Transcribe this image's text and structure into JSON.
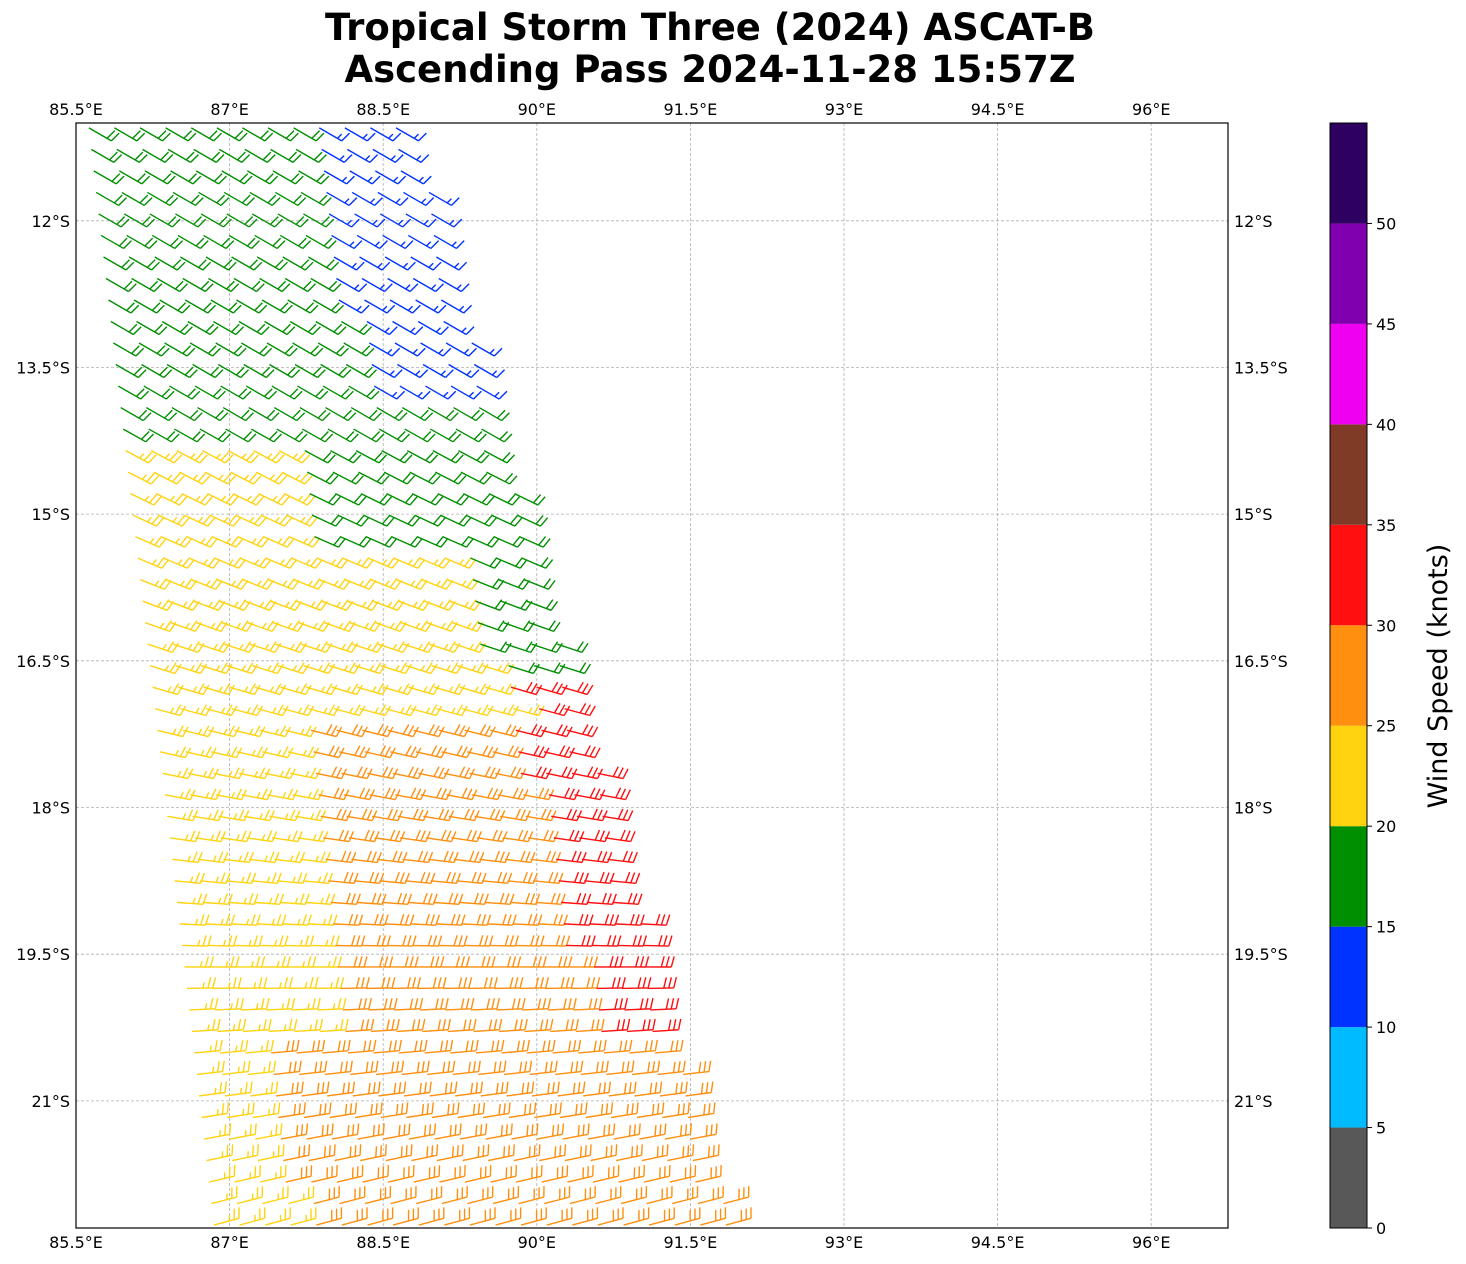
{
  "title": {
    "line1": "Tropical Storm Three (2024) ASCAT-B",
    "line2": "Ascending Pass 2024-11-28 15:57Z"
  },
  "map": {
    "lon_range": [
      85.5,
      96.75
    ],
    "lat_range": [
      -22.3,
      -11.0
    ],
    "lon_ticks": [
      "85.5°E",
      "87°E",
      "88.5°E",
      "90°E",
      "91.5°E",
      "93°E",
      "94.5°E",
      "96°E"
    ],
    "lon_tick_values": [
      85.5,
      87,
      88.5,
      90,
      91.5,
      93,
      94.5,
      96
    ],
    "lat_ticks": [
      "12°S",
      "13.5°S",
      "15°S",
      "16.5°S",
      "18°S",
      "19.5°S",
      "21°S"
    ],
    "lat_tick_values": [
      -12,
      -13.5,
      -15,
      -16.5,
      -18,
      -19.5,
      -21
    ],
    "gridlines": true,
    "swath_corners": [
      [
        85.62,
        -11.0
      ],
      [
        88.75,
        -11.0
      ],
      [
        91.9,
        -22.3
      ],
      [
        86.85,
        -22.3
      ]
    ]
  },
  "colorbar": {
    "label": "Wind Speed (knots)",
    "ticks": [
      "0",
      "5",
      "10",
      "15",
      "20",
      "25",
      "30",
      "35",
      "40",
      "45",
      "50"
    ],
    "bins": [
      {
        "range": [
          0,
          5
        ],
        "color": "#585858"
      },
      {
        "range": [
          5,
          10
        ],
        "color": "#00bbff"
      },
      {
        "range": [
          10,
          15
        ],
        "color": "#0033ff"
      },
      {
        "range": [
          15,
          20
        ],
        "color": "#008f00"
      },
      {
        "range": [
          20,
          25
        ],
        "color": "#ffd310"
      },
      {
        "range": [
          25,
          30
        ],
        "color": "#ff8f0f"
      },
      {
        "range": [
          30,
          35
        ],
        "color": "#ff0f0f"
      },
      {
        "range": [
          35,
          40
        ],
        "color": "#803b27"
      },
      {
        "range": [
          40,
          45
        ],
        "color": "#f000f0"
      },
      {
        "range": [
          45,
          50
        ],
        "color": "#8000b0"
      },
      {
        "range": [
          50,
          55
        ],
        "color": "#2e0060"
      }
    ]
  },
  "wind_field": {
    "units": "knots",
    "symbol": "wind-barb",
    "direction_regions": [
      {
        "area": "north of 14S",
        "from_deg_approx": 120
      },
      {
        "area": "16S-18S",
        "from_deg_approx": 105
      },
      {
        "area": "south of 19S",
        "from_deg_approx": 80
      }
    ],
    "speed_regions": [
      {
        "area": "NE swath edge 11S-13.7S",
        "speed_kt": [
          10,
          15
        ]
      },
      {
        "area": "11S-15.5S",
        "speed_kt": [
          15,
          20
        ]
      },
      {
        "area": "14S-17S western",
        "speed_kt": [
          20,
          25
        ]
      },
      {
        "area": "17S-22S central",
        "speed_kt": [
          25,
          30
        ]
      },
      {
        "area": "16.8S-20.3S eastern edge",
        "speed_kt": [
          30,
          35
        ]
      }
    ]
  }
}
